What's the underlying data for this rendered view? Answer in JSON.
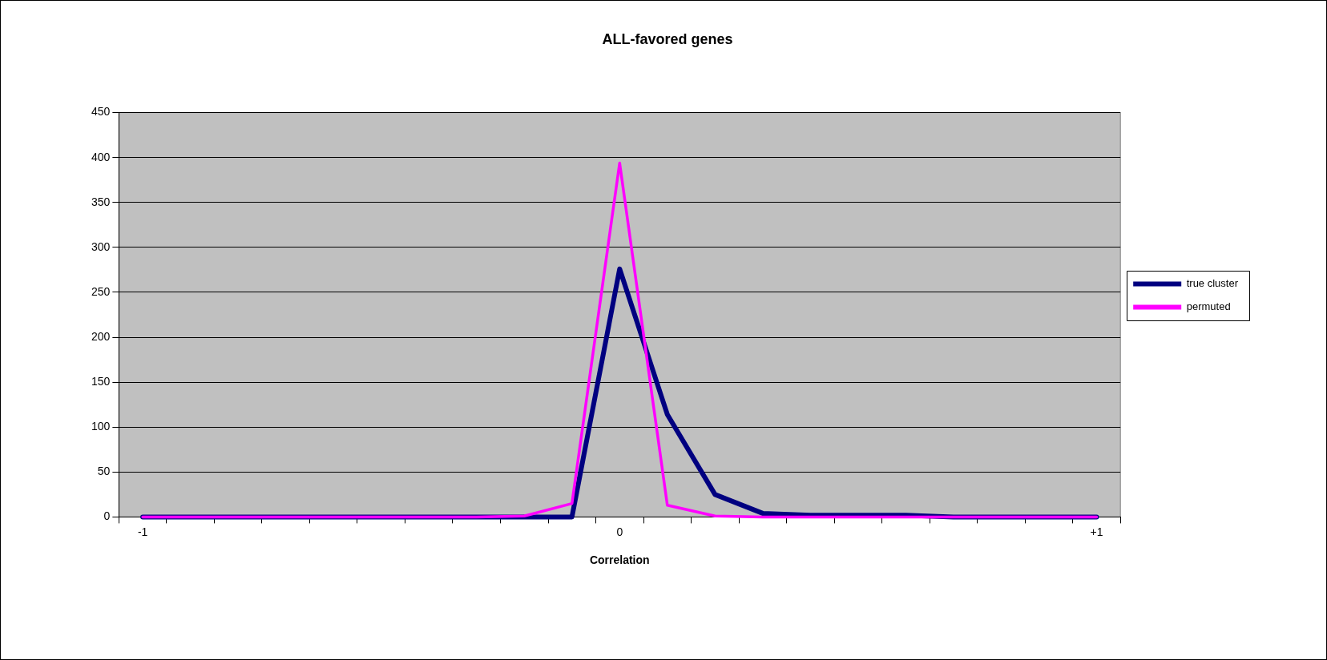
{
  "chart_data": {
    "type": "line",
    "title": "ALL-favored genes",
    "xlabel": "Correlation",
    "categories": [
      "-1",
      null,
      null,
      null,
      null,
      null,
      null,
      null,
      null,
      null,
      "0",
      null,
      null,
      null,
      null,
      null,
      null,
      null,
      null,
      null,
      "+1"
    ],
    "series": [
      {
        "name": "true cluster",
        "color": "#000080",
        "values": [
          0,
          0,
          0,
          0,
          0,
          0,
          0,
          0,
          0,
          0,
          276,
          114,
          25,
          4,
          2,
          2,
          2,
          0,
          0,
          0,
          0
        ]
      },
      {
        "name": "permuted",
        "color": "#ff00ff",
        "values": [
          0,
          0,
          0,
          0,
          0,
          0,
          0,
          0,
          1,
          15,
          394,
          13,
          1,
          0,
          0,
          0,
          0,
          0,
          0,
          0,
          0
        ]
      }
    ],
    "ylim": [
      0,
      450
    ],
    "yticks": [
      0,
      50,
      100,
      150,
      200,
      250,
      300,
      350,
      400,
      450
    ],
    "grid": "y",
    "legend": "right",
    "marker": "none",
    "line_style": "solid"
  }
}
